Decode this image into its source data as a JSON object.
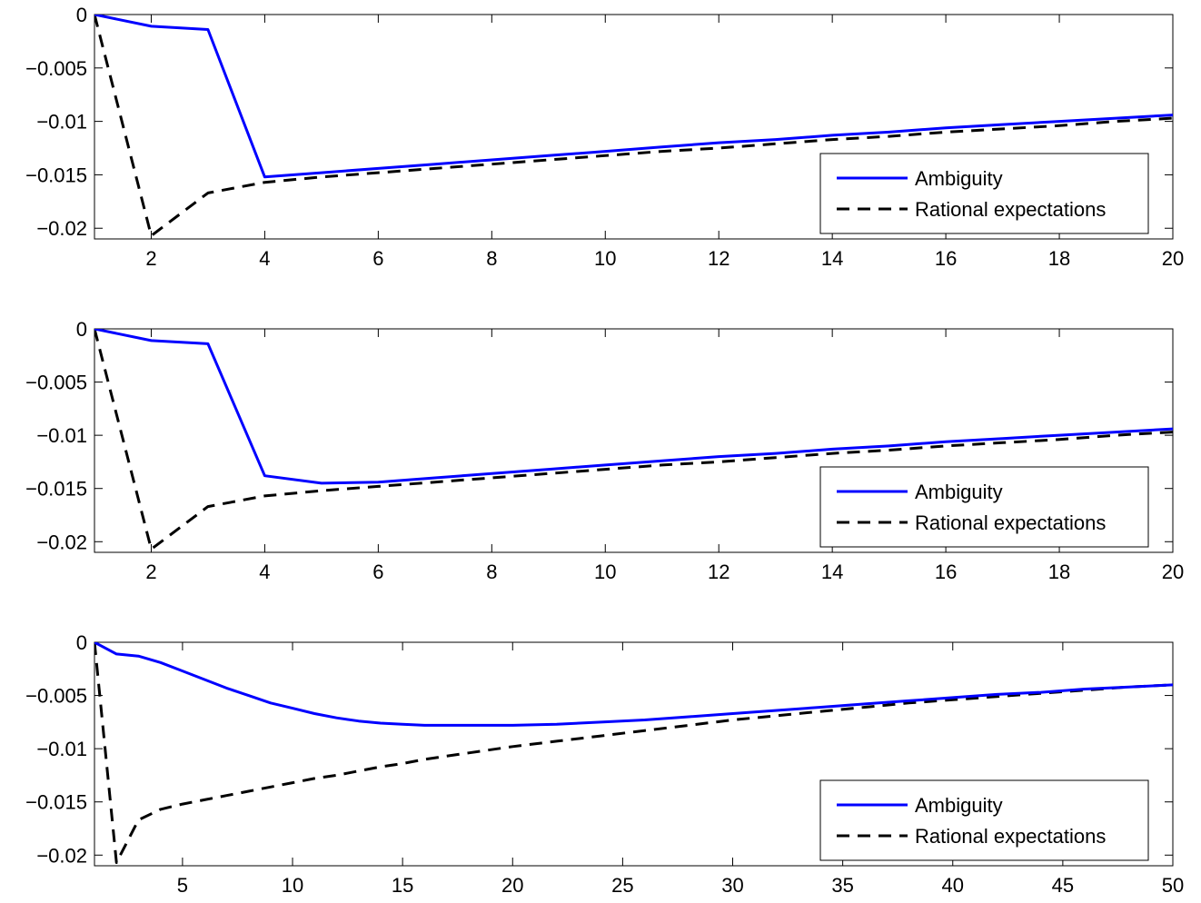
{
  "chart_data": [
    {
      "type": "line",
      "xlim": [
        1,
        20
      ],
      "ylim": [
        -0.021,
        0
      ],
      "xticks": [
        2,
        4,
        6,
        8,
        10,
        12,
        14,
        16,
        18,
        20
      ],
      "xtick_labels": [
        "2",
        "4",
        "6",
        "8",
        "10",
        "12",
        "14",
        "16",
        "18",
        "20"
      ],
      "yticks": [
        0,
        -0.005,
        -0.01,
        -0.015,
        -0.02
      ],
      "ytick_labels": [
        "0",
        "−0.005",
        "−0.01",
        "−0.015",
        "−0.02"
      ],
      "grid": false,
      "legend_position": "bottom-right",
      "series": [
        {
          "name": "Ambiguity",
          "color": "#0000ff",
          "style": "solid",
          "x": [
            1,
            2,
            3,
            4,
            5,
            6,
            7,
            8,
            9,
            10,
            11,
            12,
            13,
            14,
            15,
            16,
            17,
            18,
            19,
            20
          ],
          "y": [
            0,
            -0.0011,
            -0.0014,
            -0.0152,
            -0.0148,
            -0.0144,
            -0.014,
            -0.0136,
            -0.0132,
            -0.0128,
            -0.0124,
            -0.012,
            -0.0117,
            -0.0113,
            -0.011,
            -0.0106,
            -0.0103,
            -0.01,
            -0.0097,
            -0.0094
          ]
        },
        {
          "name": "Rational expectations",
          "color": "#000000",
          "style": "dashed",
          "x": [
            1,
            2,
            3,
            4,
            5,
            6,
            7,
            8,
            9,
            10,
            11,
            12,
            13,
            14,
            15,
            16,
            17,
            18,
            19,
            20
          ],
          "y": [
            0,
            -0.0207,
            -0.0167,
            -0.0157,
            -0.0152,
            -0.0148,
            -0.0144,
            -0.014,
            -0.0136,
            -0.0132,
            -0.0128,
            -0.0125,
            -0.0121,
            -0.0117,
            -0.0114,
            -0.011,
            -0.0107,
            -0.0104,
            -0.01,
            -0.0097
          ]
        }
      ]
    },
    {
      "type": "line",
      "xlim": [
        1,
        20
      ],
      "ylim": [
        -0.021,
        0
      ],
      "xticks": [
        2,
        4,
        6,
        8,
        10,
        12,
        14,
        16,
        18,
        20
      ],
      "xtick_labels": [
        "2",
        "4",
        "6",
        "8",
        "10",
        "12",
        "14",
        "16",
        "18",
        "20"
      ],
      "yticks": [
        0,
        -0.005,
        -0.01,
        -0.015,
        -0.02
      ],
      "ytick_labels": [
        "0",
        "−0.005",
        "−0.01",
        "−0.015",
        "−0.02"
      ],
      "grid": false,
      "legend_position": "bottom-right",
      "series": [
        {
          "name": "Ambiguity",
          "color": "#0000ff",
          "style": "solid",
          "x": [
            1,
            2,
            3,
            4,
            5,
            6,
            7,
            8,
            9,
            10,
            11,
            12,
            13,
            14,
            15,
            16,
            17,
            18,
            19,
            20
          ],
          "y": [
            0,
            -0.0011,
            -0.0014,
            -0.0138,
            -0.0145,
            -0.0144,
            -0.014,
            -0.0136,
            -0.0132,
            -0.0128,
            -0.0124,
            -0.012,
            -0.0117,
            -0.0113,
            -0.011,
            -0.0106,
            -0.0103,
            -0.01,
            -0.0097,
            -0.0094
          ]
        },
        {
          "name": "Rational expectations",
          "color": "#000000",
          "style": "dashed",
          "x": [
            1,
            2,
            3,
            4,
            5,
            6,
            7,
            8,
            9,
            10,
            11,
            12,
            13,
            14,
            15,
            16,
            17,
            18,
            19,
            20
          ],
          "y": [
            0,
            -0.0207,
            -0.0167,
            -0.0157,
            -0.0152,
            -0.0148,
            -0.0144,
            -0.014,
            -0.0136,
            -0.0132,
            -0.0128,
            -0.0125,
            -0.0121,
            -0.0117,
            -0.0114,
            -0.011,
            -0.0107,
            -0.0104,
            -0.01,
            -0.0097
          ]
        }
      ]
    },
    {
      "type": "line",
      "xlim": [
        1,
        50
      ],
      "ylim": [
        -0.021,
        0
      ],
      "xticks": [
        5,
        10,
        15,
        20,
        25,
        30,
        35,
        40,
        45,
        50
      ],
      "xtick_labels": [
        "5",
        "10",
        "15",
        "20",
        "25",
        "30",
        "35",
        "40",
        "45",
        "50"
      ],
      "yticks": [
        0,
        -0.005,
        -0.01,
        -0.015,
        -0.02
      ],
      "ytick_labels": [
        "0",
        "−0.005",
        "−0.01",
        "−0.015",
        "−0.02"
      ],
      "grid": false,
      "legend_position": "bottom-right",
      "series": [
        {
          "name": "Ambiguity",
          "color": "#0000ff",
          "style": "solid",
          "x": [
            1,
            2,
            3,
            4,
            5,
            6,
            7,
            8,
            9,
            10,
            11,
            12,
            13,
            14,
            15,
            16,
            17,
            18,
            19,
            20,
            22,
            24,
            26,
            28,
            30,
            32,
            34,
            36,
            38,
            40,
            42,
            44,
            46,
            48,
            50
          ],
          "y": [
            0,
            -0.0011,
            -0.0013,
            -0.0019,
            -0.0027,
            -0.0035,
            -0.0043,
            -0.005,
            -0.0057,
            -0.0062,
            -0.0067,
            -0.0071,
            -0.0074,
            -0.0076,
            -0.0077,
            -0.0078,
            -0.0078,
            -0.0078,
            -0.0078,
            -0.0078,
            -0.0077,
            -0.0075,
            -0.0073,
            -0.007,
            -0.0067,
            -0.0064,
            -0.0061,
            -0.0058,
            -0.0055,
            -0.0052,
            -0.0049,
            -0.0047,
            -0.0044,
            -0.0042,
            -0.004
          ]
        },
        {
          "name": "Rational expectations",
          "color": "#000000",
          "style": "dashed",
          "x": [
            1,
            2,
            3,
            4,
            5,
            6,
            7,
            8,
            9,
            10,
            11,
            12,
            13,
            14,
            15,
            16,
            17,
            18,
            19,
            20,
            22,
            24,
            26,
            28,
            30,
            32,
            34,
            36,
            38,
            40,
            42,
            44,
            46,
            48,
            50
          ],
          "y": [
            0,
            -0.0207,
            -0.0167,
            -0.0157,
            -0.0152,
            -0.0148,
            -0.0144,
            -0.014,
            -0.0136,
            -0.0132,
            -0.0128,
            -0.0125,
            -0.0121,
            -0.0117,
            -0.0114,
            -0.011,
            -0.0107,
            -0.0104,
            -0.0101,
            -0.0098,
            -0.0093,
            -0.0088,
            -0.0083,
            -0.0078,
            -0.0073,
            -0.0069,
            -0.0065,
            -0.0061,
            -0.0057,
            -0.0054,
            -0.0051,
            -0.0048,
            -0.0045,
            -0.0042,
            -0.004
          ]
        }
      ]
    }
  ]
}
